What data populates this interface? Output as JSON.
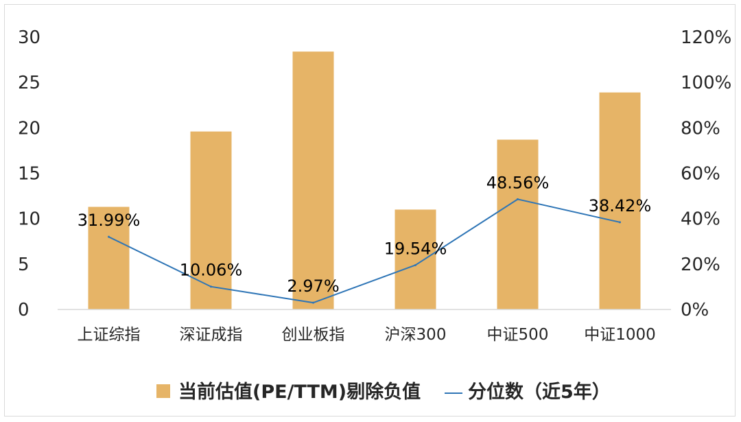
{
  "chart_data": {
    "type": "bar",
    "categories": [
      "上证综指",
      "深证成指",
      "创业板指",
      "沪深300",
      "中证500",
      "中证1000"
    ],
    "series": [
      {
        "name": "当前估值(PE/TTM)剔除负值",
        "type": "bar",
        "axis": "left",
        "color": "#E6B467",
        "values": [
          11.3,
          19.6,
          28.4,
          11.0,
          18.7,
          23.9
        ]
      },
      {
        "name": "分位数（近5年）",
        "type": "line",
        "axis": "right",
        "color": "#2E75B6",
        "values": [
          31.99,
          10.06,
          2.97,
          19.54,
          48.56,
          38.42
        ],
        "labels": [
          "31.99%",
          "10.06%",
          "2.97%",
          "19.54%",
          "48.56%",
          "38.42%"
        ]
      }
    ],
    "y_left": {
      "range": [
        0,
        30
      ],
      "ticks": [
        "0",
        "5",
        "10",
        "15",
        "20",
        "25",
        "30"
      ]
    },
    "y_right": {
      "range": [
        0,
        120
      ],
      "ticks": [
        "0%",
        "20%",
        "40%",
        "60%",
        "80%",
        "100%",
        "120%"
      ]
    },
    "grid": false,
    "legend_position": "bottom"
  }
}
